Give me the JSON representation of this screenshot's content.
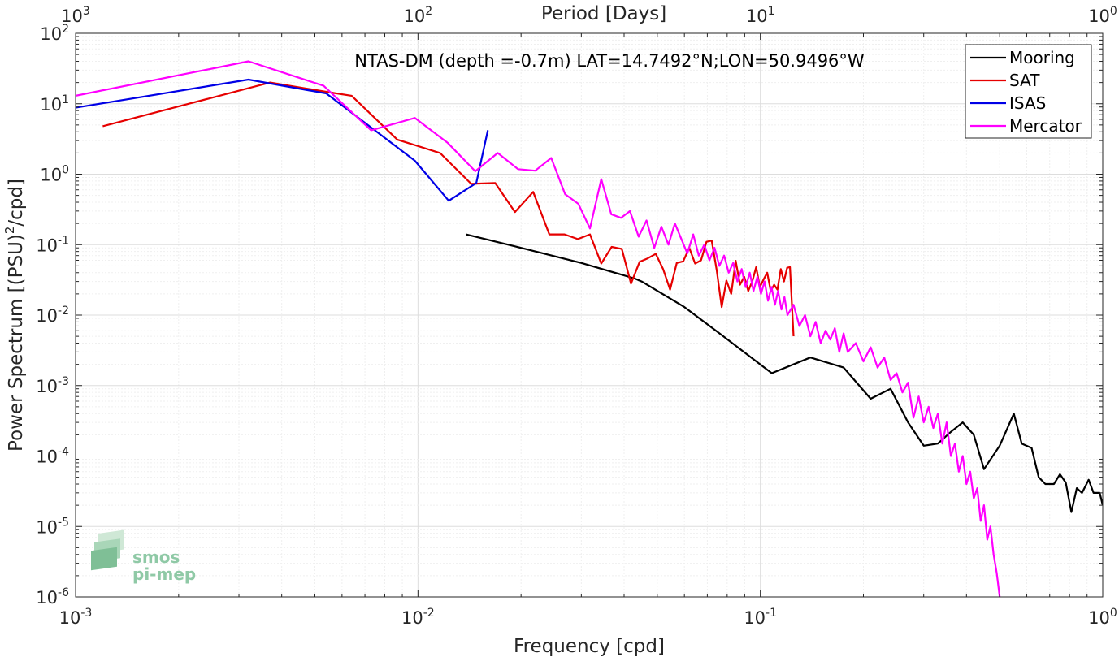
{
  "chart_data": {
    "type": "line",
    "title": "NTAS-DM (depth =-0.7m) LAT=14.7492°N;LON=50.9496°W",
    "xlabel": "Frequency [cpd]",
    "ylabel": "Power Spectrum [(PSU)²/cpd]",
    "ylabel_parts": {
      "main": "Power Spectrum [(PSU)",
      "sup": "2",
      "end": "/cpd]"
    },
    "x2label": "Period [Days]",
    "x_scale": "log",
    "y_scale": "log",
    "xlim": [
      0.001,
      1
    ],
    "ylim": [
      1e-06,
      100
    ],
    "grid": true,
    "legend_position": "top-right",
    "x_ticks": [
      {
        "value": 0.001,
        "base": "10",
        "exp": "-3"
      },
      {
        "value": 0.01,
        "base": "10",
        "exp": "-2"
      },
      {
        "value": 0.1,
        "base": "10",
        "exp": "-1"
      },
      {
        "value": 1,
        "base": "10",
        "exp": "0"
      }
    ],
    "x2_ticks": [
      {
        "freq": 0.001,
        "base": "10",
        "exp": "3"
      },
      {
        "freq": 0.01,
        "base": "10",
        "exp": "2"
      },
      {
        "freq": 0.1,
        "base": "10",
        "exp": "1"
      },
      {
        "freq": 1,
        "base": "10",
        "exp": "0"
      }
    ],
    "y_ticks": [
      {
        "value": 100,
        "base": "10",
        "exp": "2"
      },
      {
        "value": 10,
        "base": "10",
        "exp": "1"
      },
      {
        "value": 1,
        "base": "10",
        "exp": "0"
      },
      {
        "value": 0.1,
        "base": "10",
        "exp": "-1"
      },
      {
        "value": 0.01,
        "base": "10",
        "exp": "-2"
      },
      {
        "value": 0.001,
        "base": "10",
        "exp": "-3"
      },
      {
        "value": 0.0001,
        "base": "10",
        "exp": "-4"
      },
      {
        "value": 1e-05,
        "base": "10",
        "exp": "-5"
      },
      {
        "value": 1e-06,
        "base": "10",
        "exp": "-6"
      }
    ],
    "series": [
      {
        "name": "Mooring",
        "color": "#000000",
        "points": [
          [
            0.0138,
            0.14
          ],
          [
            0.02,
            0.09
          ],
          [
            0.03,
            0.055
          ],
          [
            0.043,
            0.033
          ],
          [
            0.045,
            0.03
          ],
          [
            0.06,
            0.013
          ],
          [
            0.076,
            0.0055
          ],
          [
            0.108,
            0.0015
          ],
          [
            0.14,
            0.0025
          ],
          [
            0.175,
            0.0018
          ],
          [
            0.21,
            0.00065
          ],
          [
            0.24,
            0.0009
          ],
          [
            0.27,
            0.0003
          ],
          [
            0.3,
            0.00014
          ],
          [
            0.33,
            0.00015
          ],
          [
            0.36,
            0.00022
          ],
          [
            0.39,
            0.0003
          ],
          [
            0.42,
            0.0002
          ],
          [
            0.45,
            6.5e-05
          ],
          [
            0.5,
            0.00014
          ],
          [
            0.55,
            0.0004
          ],
          [
            0.58,
            0.00015
          ],
          [
            0.62,
            0.00013
          ],
          [
            0.65,
            5e-05
          ],
          [
            0.68,
            4e-05
          ],
          [
            0.72,
            4e-05
          ],
          [
            0.75,
            5.5e-05
          ],
          [
            0.78,
            4.2e-05
          ],
          [
            0.81,
            1.6e-05
          ],
          [
            0.84,
            3.5e-05
          ],
          [
            0.87,
            3e-05
          ],
          [
            0.91,
            4.6e-05
          ],
          [
            0.94,
            3e-05
          ],
          [
            0.98,
            3e-05
          ],
          [
            1.0,
            2e-05
          ]
        ]
      },
      {
        "name": "SAT",
        "color": "#e60000",
        "points": [
          [
            0.0012,
            4.8
          ],
          [
            0.0037,
            20
          ],
          [
            0.0053,
            15
          ],
          [
            0.0064,
            13
          ],
          [
            0.0087,
            3.1
          ],
          [
            0.0116,
            2.0
          ],
          [
            0.0143,
            0.73
          ],
          [
            0.0168,
            0.75
          ],
          [
            0.0192,
            0.29
          ],
          [
            0.0217,
            0.56
          ],
          [
            0.0242,
            0.14
          ],
          [
            0.0268,
            0.14
          ],
          [
            0.0293,
            0.12
          ],
          [
            0.0318,
            0.14
          ],
          [
            0.0343,
            0.054
          ],
          [
            0.0368,
            0.093
          ],
          [
            0.0394,
            0.087
          ],
          [
            0.0419,
            0.028
          ],
          [
            0.0444,
            0.057
          ],
          [
            0.0469,
            0.064
          ],
          [
            0.0495,
            0.074
          ],
          [
            0.052,
            0.045
          ],
          [
            0.0545,
            0.023
          ],
          [
            0.057,
            0.055
          ],
          [
            0.0595,
            0.058
          ],
          [
            0.062,
            0.09
          ],
          [
            0.0645,
            0.054
          ],
          [
            0.0671,
            0.06
          ],
          [
            0.0696,
            0.11
          ],
          [
            0.0721,
            0.114
          ],
          [
            0.0746,
            0.043
          ],
          [
            0.0771,
            0.013
          ],
          [
            0.0796,
            0.031
          ],
          [
            0.0822,
            0.02
          ],
          [
            0.0847,
            0.059
          ],
          [
            0.0872,
            0.027
          ],
          [
            0.0897,
            0.035
          ],
          [
            0.0922,
            0.022
          ],
          [
            0.0947,
            0.03
          ],
          [
            0.0972,
            0.048
          ],
          [
            0.0997,
            0.025
          ],
          [
            0.1022,
            0.032
          ],
          [
            0.1047,
            0.04
          ],
          [
            0.1072,
            0.022
          ],
          [
            0.1097,
            0.027
          ],
          [
            0.1122,
            0.023
          ],
          [
            0.1147,
            0.045
          ],
          [
            0.1172,
            0.03
          ],
          [
            0.1197,
            0.047
          ],
          [
            0.122,
            0.048
          ],
          [
            0.125,
            0.005
          ]
        ]
      },
      {
        "name": "ISAS",
        "color": "#0000e6",
        "points": [
          [
            0.001,
            8.8
          ],
          [
            0.0032,
            22
          ],
          [
            0.0054,
            14
          ],
          [
            0.0098,
            1.55
          ],
          [
            0.0123,
            0.42
          ],
          [
            0.0148,
            0.75
          ],
          [
            0.016,
            4.2
          ]
        ]
      },
      {
        "name": "Mercator",
        "color": "#ff00ff",
        "points": [
          [
            0.001,
            13
          ],
          [
            0.0032,
            40
          ],
          [
            0.0053,
            18
          ],
          [
            0.0073,
            4.2
          ],
          [
            0.0098,
            6.3
          ],
          [
            0.0122,
            2.8
          ],
          [
            0.0147,
            1.1
          ],
          [
            0.0171,
            2.0
          ],
          [
            0.0196,
            1.18
          ],
          [
            0.022,
            1.12
          ],
          [
            0.0245,
            1.7
          ],
          [
            0.0269,
            0.52
          ],
          [
            0.0294,
            0.38
          ],
          [
            0.0318,
            0.17
          ],
          [
            0.0343,
            0.85
          ],
          [
            0.0367,
            0.27
          ],
          [
            0.0392,
            0.24
          ],
          [
            0.0416,
            0.3
          ],
          [
            0.0441,
            0.13
          ],
          [
            0.0465,
            0.22
          ],
          [
            0.049,
            0.09
          ],
          [
            0.0514,
            0.18
          ],
          [
            0.0539,
            0.1
          ],
          [
            0.0563,
            0.2
          ],
          [
            0.0588,
            0.12
          ],
          [
            0.0612,
            0.075
          ],
          [
            0.0637,
            0.14
          ],
          [
            0.0661,
            0.07
          ],
          [
            0.0686,
            0.1
          ],
          [
            0.071,
            0.06
          ],
          [
            0.0735,
            0.09
          ],
          [
            0.0759,
            0.05
          ],
          [
            0.0784,
            0.07
          ],
          [
            0.0808,
            0.04
          ],
          [
            0.0833,
            0.055
          ],
          [
            0.0857,
            0.03
          ],
          [
            0.0882,
            0.045
          ],
          [
            0.0906,
            0.025
          ],
          [
            0.0931,
            0.04
          ],
          [
            0.0955,
            0.022
          ],
          [
            0.098,
            0.035
          ],
          [
            0.1004,
            0.02
          ],
          [
            0.1029,
            0.03
          ],
          [
            0.1053,
            0.016
          ],
          [
            0.1078,
            0.025
          ],
          [
            0.1103,
            0.014
          ],
          [
            0.1127,
            0.022
          ],
          [
            0.1152,
            0.012
          ],
          [
            0.1176,
            0.018
          ],
          [
            0.12,
            0.01
          ],
          [
            0.125,
            0.014
          ],
          [
            0.13,
            0.007
          ],
          [
            0.135,
            0.01
          ],
          [
            0.14,
            0.005
          ],
          [
            0.145,
            0.008
          ],
          [
            0.15,
            0.004
          ],
          [
            0.155,
            0.006
          ],
          [
            0.16,
            0.0045
          ],
          [
            0.165,
            0.0065
          ],
          [
            0.17,
            0.003
          ],
          [
            0.175,
            0.0055
          ],
          [
            0.18,
            0.003
          ],
          [
            0.19,
            0.004
          ],
          [
            0.2,
            0.0022
          ],
          [
            0.21,
            0.0035
          ],
          [
            0.22,
            0.0018
          ],
          [
            0.23,
            0.0025
          ],
          [
            0.24,
            0.0012
          ],
          [
            0.25,
            0.0015
          ],
          [
            0.26,
            0.0008
          ],
          [
            0.27,
            0.0011
          ],
          [
            0.28,
            0.00035
          ],
          [
            0.29,
            0.0007
          ],
          [
            0.3,
            0.0003
          ],
          [
            0.31,
            0.0005
          ],
          [
            0.32,
            0.00025
          ],
          [
            0.33,
            0.0004
          ],
          [
            0.34,
            0.00015
          ],
          [
            0.35,
            0.0003
          ],
          [
            0.36,
            0.0001
          ],
          [
            0.37,
            0.00015
          ],
          [
            0.38,
            6e-05
          ],
          [
            0.39,
            0.0001
          ],
          [
            0.4,
            4e-05
          ],
          [
            0.41,
            6e-05
          ],
          [
            0.42,
            2.5e-05
          ],
          [
            0.43,
            3.5e-05
          ],
          [
            0.44,
            1.2e-05
          ],
          [
            0.45,
            2e-05
          ],
          [
            0.46,
            6.5e-06
          ],
          [
            0.47,
            1e-05
          ],
          [
            0.48,
            4e-06
          ],
          [
            0.49,
            2.2e-06
          ],
          [
            0.5,
            1e-06
          ]
        ]
      }
    ]
  },
  "logo": {
    "line1": "smos",
    "line2": "pi-mep"
  }
}
